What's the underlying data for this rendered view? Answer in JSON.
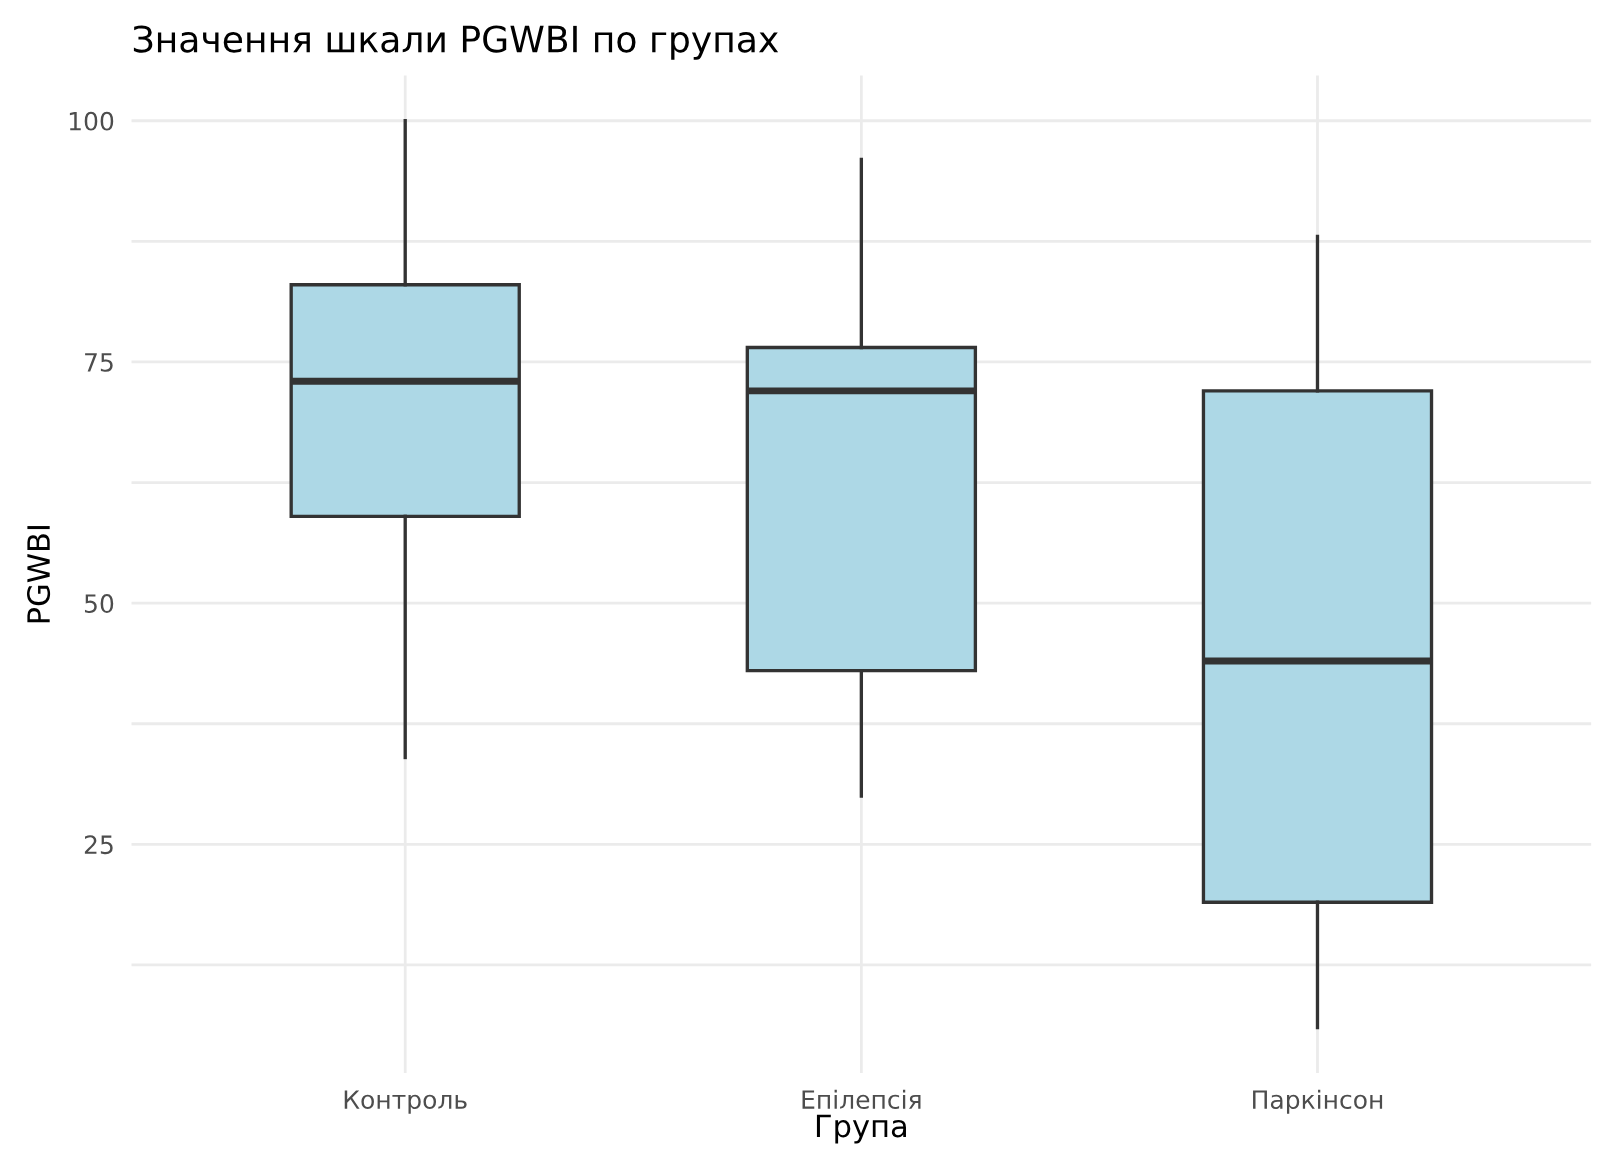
{
  "chart_data": {
    "type": "box",
    "title": "Значення шкали PGWBI по групах",
    "xlabel": "Група",
    "ylabel": "PGWBI",
    "categories": [
      "Контроль",
      "Епілепсія",
      "Паркінсон"
    ],
    "color": "#add8e6",
    "boxes": [
      {
        "low": 34,
        "q1": 59,
        "median": 73,
        "q3": 83,
        "high": 100
      },
      {
        "low": 30,
        "q1": 43,
        "median": 72,
        "q3": 76.5,
        "high": 96
      },
      {
        "low": 6,
        "q1": 19,
        "median": 44,
        "q3": 72,
        "high": 88
      }
    ],
    "ylim": [
      1.3,
      104.7
    ],
    "yticks": [
      {
        "value": 12.5,
        "label": null
      },
      25,
      {
        "value": 37.5,
        "label": null
      },
      50,
      {
        "value": 62.5,
        "label": null
      },
      75,
      {
        "value": 87.5,
        "label": null
      },
      100
    ],
    "grid": true
  }
}
